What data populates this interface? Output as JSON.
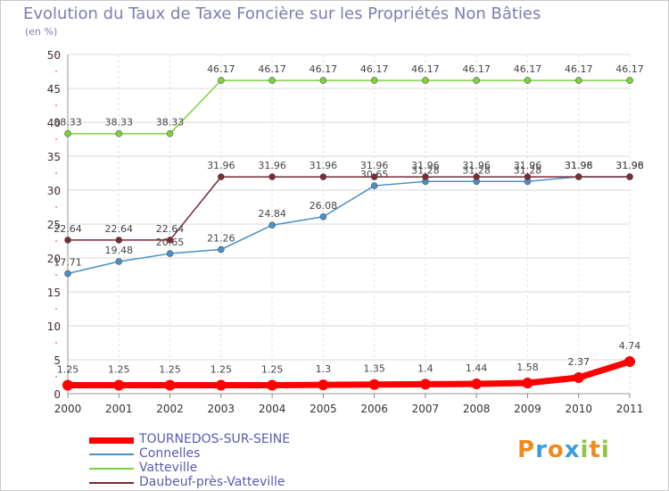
{
  "chart_data": {
    "type": "line",
    "title": "Evolution du Taux de Taxe Foncière sur les Propriétés Non Bâties",
    "subtitle": "(en %)",
    "xlabel": "",
    "ylabel": "",
    "x": [
      "2000",
      "2001",
      "2002",
      "2003",
      "2004",
      "2005",
      "2006",
      "2007",
      "2008",
      "2009",
      "2010",
      "2011"
    ],
    "ylim": [
      0,
      50
    ],
    "yticks": [
      0,
      5,
      10,
      15,
      20,
      25,
      30,
      35,
      40,
      45,
      50
    ],
    "grid": true,
    "series": [
      {
        "name": "TOURNEDOS-SUR-SEINE",
        "color": "#ff0000",
        "values": [
          1.25,
          1.25,
          1.25,
          1.25,
          1.25,
          1.3,
          1.35,
          1.4,
          1.44,
          1.58,
          2.37,
          4.74
        ],
        "labels": [
          "1.25",
          "1.25",
          "1.25",
          "1.25",
          "1.25",
          "1.3",
          "1.35",
          "1.4",
          "1.44",
          "1.58",
          "2.37",
          "4.74"
        ]
      },
      {
        "name": "Connelles",
        "color": "#4a90c8",
        "values": [
          17.71,
          19.48,
          20.65,
          21.26,
          24.84,
          26.08,
          30.65,
          31.28,
          31.28,
          31.28,
          31.98,
          31.98
        ],
        "labels": [
          "17.71",
          "19.48",
          "20.65",
          "21.26",
          "24.84",
          "26.08",
          "30.65",
          "31.28",
          "31.28",
          "31.28",
          "31.98",
          "31.98"
        ]
      },
      {
        "name": "Vatteville",
        "color": "#7cd33a",
        "values": [
          38.33,
          38.33,
          38.33,
          46.17,
          46.17,
          46.17,
          46.17,
          46.17,
          46.17,
          46.17,
          46.17,
          46.17
        ],
        "labels": [
          "38.33",
          "38.33",
          "38.33",
          "46.17",
          "46.17",
          "46.17",
          "46.17",
          "46.17",
          "46.17",
          "46.17",
          "46.17",
          "46.17"
        ]
      },
      {
        "name": "Daubeuf-près-Vatteville",
        "color": "#7a2a35",
        "values": [
          22.64,
          22.64,
          22.64,
          31.96,
          31.96,
          31.96,
          31.96,
          31.96,
          31.96,
          31.96,
          31.96,
          31.96
        ],
        "labels": [
          "22.64",
          "22.64",
          "22.64",
          "31.96",
          "31.96",
          "31.96",
          "31.96",
          "31.96",
          "31.96",
          "31.96",
          "31.96",
          "31.96"
        ]
      }
    ],
    "legend_position": "bottom-left"
  },
  "branding": {
    "letters": [
      "P",
      "r",
      "o",
      "x",
      "i",
      "t",
      "i"
    ],
    "colors": [
      "#f08a1d",
      "#3aa0d9",
      "#f08a1d",
      "#3aa0d9",
      "#8cc63f",
      "#f08a1d",
      "#8cc63f"
    ]
  }
}
